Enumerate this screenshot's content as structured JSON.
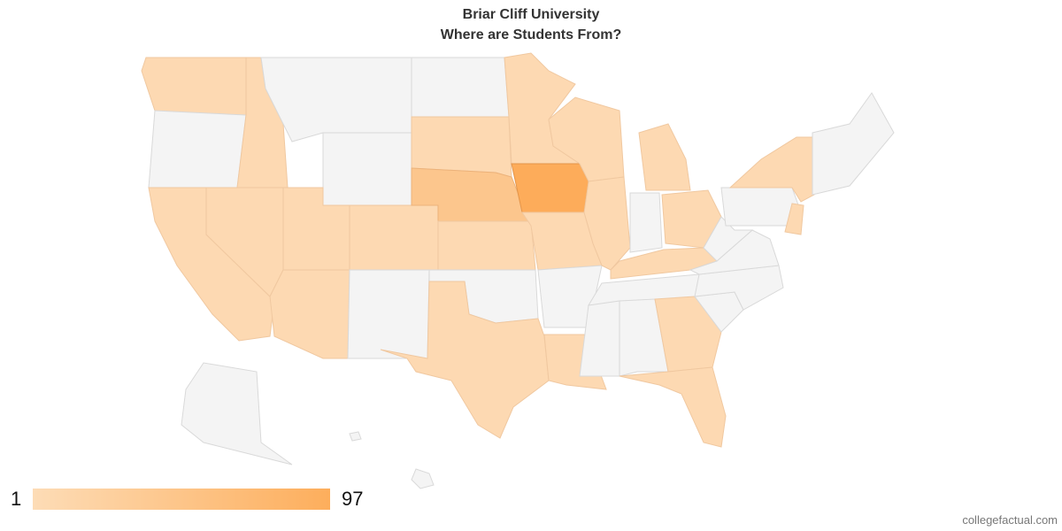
{
  "title": "Briar Cliff University",
  "subtitle": "Where are Students From?",
  "legend": {
    "min": 1,
    "max": 97,
    "min_color": "#fddcb6",
    "max_color": "#fdae5c"
  },
  "source": "collegefactual.com"
}
